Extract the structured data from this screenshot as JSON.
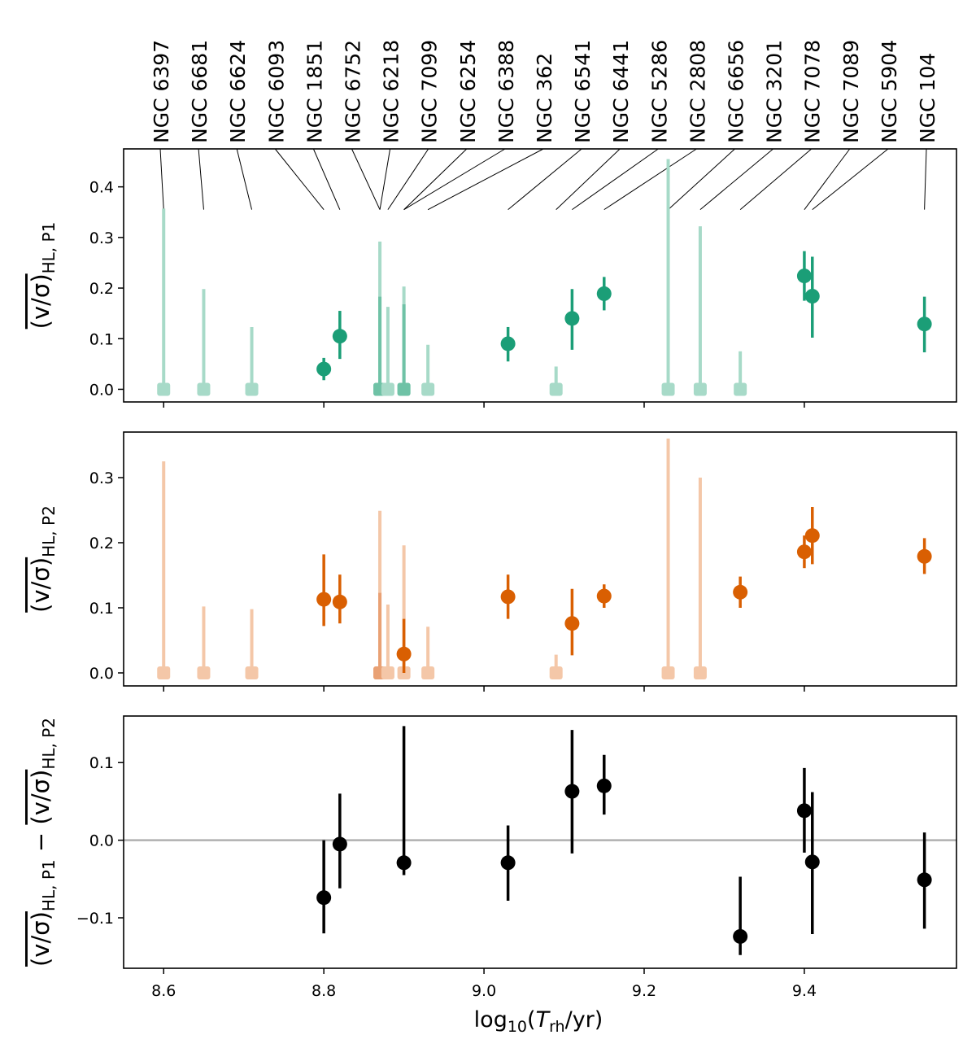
{
  "chart_data": {
    "type": "scatter",
    "xlabel": "log10(T_rh/yr)",
    "xlim": [
      8.55,
      9.59
    ],
    "xticks": [
      8.6,
      8.8,
      9.0,
      9.2,
      9.4
    ],
    "xtick_labels": [
      "8.6",
      "8.8",
      "9.0",
      "9.2",
      "9.4"
    ],
    "cluster_labels": [
      "NGC 6397",
      "NGC 6681",
      "NGC 6624",
      "NGC 6093",
      "NGC 1851",
      "NGC 6752",
      "NGC 6218",
      "NGC 7099",
      "NGC 6254",
      "NGC 6388",
      "NGC 362",
      "NGC 6541",
      "NGC 6441",
      "NGC 5286",
      "NGC 2808",
      "NGC 6656",
      "NGC 3201",
      "NGC 7078",
      "NGC 7089",
      "NGC 5904",
      "NGC 104"
    ],
    "cluster_x": [
      8.6,
      8.65,
      8.71,
      8.8,
      8.82,
      8.87,
      8.87,
      8.88,
      8.9,
      8.9,
      8.93,
      9.03,
      9.09,
      9.11,
      9.15,
      9.23,
      9.27,
      9.32,
      9.4,
      9.41,
      9.55
    ],
    "panels": [
      {
        "ylabel": "(v/σ)HL, P1",
        "ylabel_main": "(v/σ)",
        "ylabel_sub": "HL, P1",
        "ylim": [
          -0.025,
          0.475
        ],
        "yticks": [
          0.0,
          0.1,
          0.2,
          0.3,
          0.4
        ],
        "ytick_labels": [
          "0.0",
          "0.1",
          "0.2",
          "0.3",
          "0.4"
        ],
        "color": "#1b9e77",
        "color_light": "#a7dac8",
        "color_light_mid": "#6fc2a6",
        "measured": [
          {
            "x": 8.8,
            "y": 0.04,
            "lo": 0.018,
            "hi": 0.062
          },
          {
            "x": 8.82,
            "y": 0.105,
            "lo": 0.06,
            "hi": 0.155
          },
          {
            "x": 9.03,
            "y": 0.09,
            "lo": 0.055,
            "hi": 0.123
          },
          {
            "x": 9.11,
            "y": 0.14,
            "lo": 0.078,
            "hi": 0.198
          },
          {
            "x": 9.15,
            "y": 0.189,
            "lo": 0.156,
            "hi": 0.222
          },
          {
            "x": 9.4,
            "y": 0.224,
            "lo": 0.175,
            "hi": 0.273
          },
          {
            "x": 9.41,
            "y": 0.184,
            "lo": 0.102,
            "hi": 0.262
          },
          {
            "x": 9.55,
            "y": 0.129,
            "lo": 0.073,
            "hi": 0.183
          }
        ],
        "upper_limits": [
          {
            "x": 8.6,
            "up": 0.357
          },
          {
            "x": 8.65,
            "up": 0.198
          },
          {
            "x": 8.71,
            "up": 0.123
          },
          {
            "x": 8.87,
            "up": 0.292
          },
          {
            "x": 8.87,
            "up": 0.183,
            "mid": true
          },
          {
            "x": 8.88,
            "up": 0.163
          },
          {
            "x": 8.9,
            "up": 0.203
          },
          {
            "x": 8.9,
            "up": 0.168,
            "mid": true
          },
          {
            "x": 8.93,
            "up": 0.088
          },
          {
            "x": 9.09,
            "up": 0.045
          },
          {
            "x": 9.23,
            "up": 0.455
          },
          {
            "x": 9.27,
            "up": 0.322
          },
          {
            "x": 9.32,
            "up": 0.075
          }
        ]
      },
      {
        "ylabel": "(v/σ)HL, P2",
        "ylabel_main": "(v/σ)",
        "ylabel_sub": "HL, P2",
        "ylim": [
          -0.02,
          0.37
        ],
        "yticks": [
          0.0,
          0.1,
          0.2,
          0.3
        ],
        "ytick_labels": [
          "0.0",
          "0.1",
          "0.2",
          "0.3"
        ],
        "color": "#d95f02",
        "color_light": "#f4c7a8",
        "color_light_mid": "#e9a174",
        "measured": [
          {
            "x": 8.8,
            "y": 0.113,
            "lo": 0.072,
            "hi": 0.182
          },
          {
            "x": 8.82,
            "y": 0.109,
            "lo": 0.076,
            "hi": 0.151
          },
          {
            "x": 8.9,
            "y": 0.029,
            "lo": 0.0,
            "hi": 0.083
          },
          {
            "x": 9.03,
            "y": 0.117,
            "lo": 0.083,
            "hi": 0.151
          },
          {
            "x": 9.11,
            "y": 0.076,
            "lo": 0.027,
            "hi": 0.129
          },
          {
            "x": 9.15,
            "y": 0.118,
            "lo": 0.1,
            "hi": 0.136
          },
          {
            "x": 9.32,
            "y": 0.124,
            "lo": 0.1,
            "hi": 0.148
          },
          {
            "x": 9.4,
            "y": 0.186,
            "lo": 0.161,
            "hi": 0.211
          },
          {
            "x": 9.41,
            "y": 0.211,
            "lo": 0.167,
            "hi": 0.255
          },
          {
            "x": 9.55,
            "y": 0.179,
            "lo": 0.152,
            "hi": 0.207
          }
        ],
        "upper_limits": [
          {
            "x": 8.6,
            "up": 0.325
          },
          {
            "x": 8.65,
            "up": 0.102
          },
          {
            "x": 8.71,
            "up": 0.098
          },
          {
            "x": 8.87,
            "up": 0.249
          },
          {
            "x": 8.87,
            "up": 0.123,
            "mid": true
          },
          {
            "x": 8.88,
            "up": 0.105
          },
          {
            "x": 8.9,
            "up": 0.196
          },
          {
            "x": 8.93,
            "up": 0.071
          },
          {
            "x": 9.09,
            "up": 0.028
          },
          {
            "x": 9.23,
            "up": 0.36
          },
          {
            "x": 9.27,
            "up": 0.3
          }
        ]
      },
      {
        "ylabel": "(v/σ)HL, P1 − (v/σ)HL, P2",
        "ylabel_main": "(v/σ)",
        "ylabel_sub1": "HL, P1",
        "ylabel_minus": " − ",
        "ylabel_sub2": "HL, P2",
        "ylim": [
          -0.165,
          0.16
        ],
        "yticks": [
          -0.1,
          0.0,
          0.1
        ],
        "ytick_labels": [
          "−0.1",
          "0.0",
          "0.1"
        ],
        "color": "#000000",
        "zero_line_color": "#b0b0b0",
        "measured": [
          {
            "x": 8.8,
            "y": -0.074,
            "lo": -0.12,
            "hi": 0.0
          },
          {
            "x": 8.82,
            "y": -0.005,
            "lo": -0.062,
            "hi": 0.06
          },
          {
            "x": 8.9,
            "y": -0.029,
            "lo": -0.045,
            "hi": 0.147
          },
          {
            "x": 9.03,
            "y": -0.029,
            "lo": -0.078,
            "hi": 0.019
          },
          {
            "x": 9.11,
            "y": 0.063,
            "lo": -0.017,
            "hi": 0.142
          },
          {
            "x": 9.15,
            "y": 0.07,
            "lo": 0.033,
            "hi": 0.11
          },
          {
            "x": 9.32,
            "y": -0.124,
            "lo": -0.148,
            "hi": -0.047
          },
          {
            "x": 9.4,
            "y": 0.038,
            "lo": -0.016,
            "hi": 0.093
          },
          {
            "x": 9.41,
            "y": -0.028,
            "lo": -0.121,
            "hi": 0.062
          },
          {
            "x": 9.55,
            "y": -0.051,
            "lo": -0.114,
            "hi": 0.01
          }
        ]
      }
    ]
  }
}
